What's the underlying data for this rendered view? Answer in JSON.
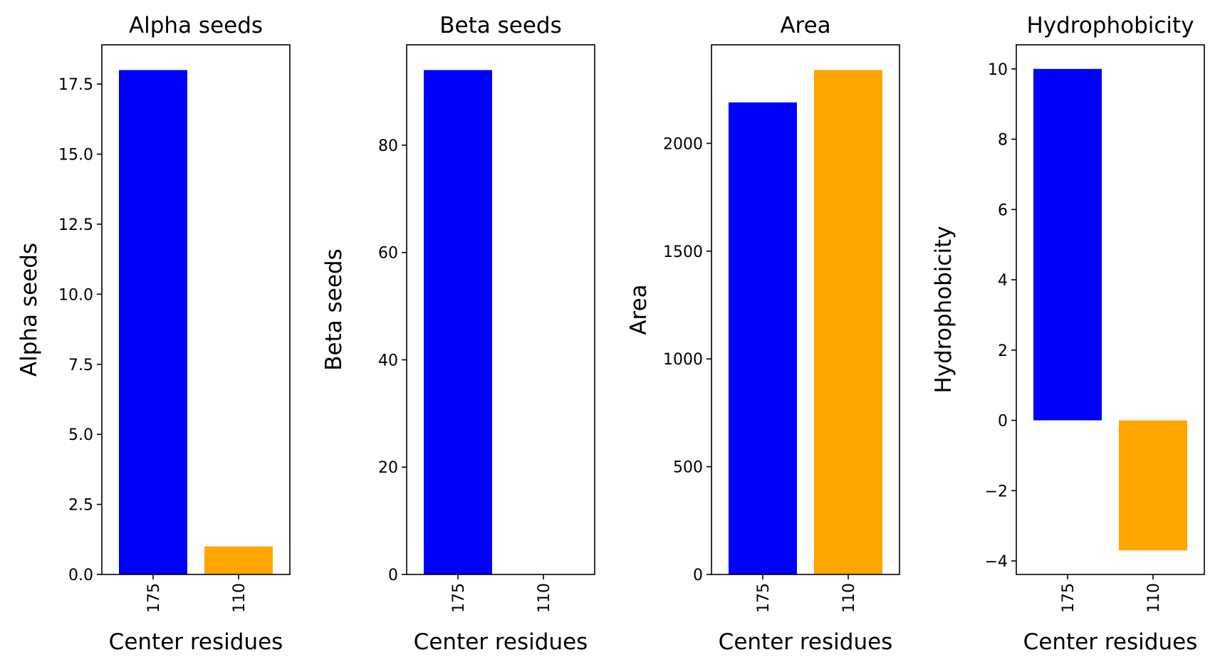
{
  "chart_data": [
    {
      "type": "bar",
      "title": "Alpha seeds",
      "xlabel": "Center residues",
      "ylabel": "Alpha seeds",
      "categories": [
        "175",
        "110"
      ],
      "values": [
        18,
        1
      ],
      "colors": [
        "#0000ff",
        "#ffa500"
      ],
      "ylim": [
        0,
        18.9
      ],
      "yticks": [
        0.0,
        2.5,
        5.0,
        7.5,
        10.0,
        12.5,
        15.0,
        17.5
      ],
      "ytick_labels": [
        "0.0",
        "2.5",
        "5.0",
        "7.5",
        "10.0",
        "12.5",
        "15.0",
        "17.5"
      ]
    },
    {
      "type": "bar",
      "title": "Beta seeds",
      "xlabel": "Center residues",
      "ylabel": "Beta seeds",
      "categories": [
        "175",
        "110"
      ],
      "values": [
        94,
        0
      ],
      "colors": [
        "#0000ff",
        "#ffa500"
      ],
      "ylim": [
        0,
        98.7
      ],
      "yticks": [
        0,
        20,
        40,
        60,
        80
      ],
      "ytick_labels": [
        "0",
        "20",
        "40",
        "60",
        "80"
      ]
    },
    {
      "type": "bar",
      "title": "Area",
      "xlabel": "Center residues",
      "ylabel": "Area",
      "categories": [
        "175",
        "110"
      ],
      "values": [
        2190,
        2340
      ],
      "colors": [
        "#0000ff",
        "#ffa500"
      ],
      "ylim": [
        0,
        2457
      ],
      "yticks": [
        0,
        500,
        1000,
        1500,
        2000
      ],
      "ytick_labels": [
        "0",
        "500",
        "1000",
        "1500",
        "2000"
      ]
    },
    {
      "type": "bar",
      "title": "Hydrophobicity",
      "xlabel": "Center residues",
      "ylabel": "Hydrophobicity",
      "categories": [
        "175",
        "110"
      ],
      "values": [
        10,
        -3.7
      ],
      "colors": [
        "#0000ff",
        "#ffa500"
      ],
      "ylim": [
        -4.385,
        10.685
      ],
      "yticks": [
        -4,
        -2,
        0,
        2,
        4,
        6,
        8,
        10
      ],
      "ytick_labels": [
        "−4",
        "−2",
        "0",
        "2",
        "4",
        "6",
        "8",
        "10"
      ]
    }
  ]
}
